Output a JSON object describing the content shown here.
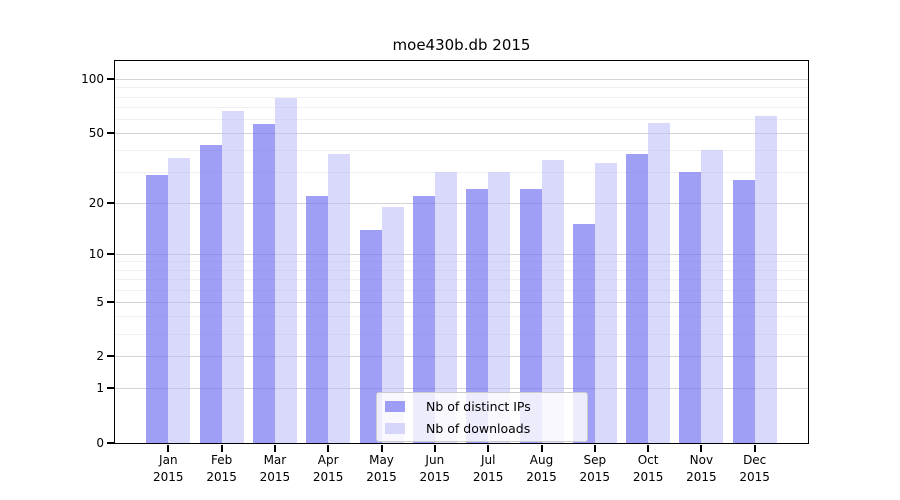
{
  "chart_data": {
    "type": "bar",
    "title": "moe430b.db 2015",
    "categories": [
      "Jan",
      "Feb",
      "Mar",
      "Apr",
      "May",
      "Jun",
      "Jul",
      "Aug",
      "Sep",
      "Oct",
      "Nov",
      "Dec"
    ],
    "category_year": "2015",
    "series": [
      {
        "name": "Nb of distinct IPs",
        "color": "rgba(108,108,240,0.65)",
        "color_hex_on_white": "#a3a3f3",
        "values": [
          29,
          43,
          56,
          22,
          14,
          22,
          24,
          24,
          15,
          38,
          30,
          27
        ]
      },
      {
        "name": "Nb of downloads",
        "color": "rgba(185,185,247,0.55)",
        "color_hex_on_white": "#d8d8fa",
        "values": [
          36,
          66,
          78,
          38,
          19,
          30,
          30,
          35,
          34,
          57,
          40,
          62
        ]
      }
    ],
    "xlabel": "",
    "ylabel": "",
    "yscale": "log10(1+y)",
    "ylim": [
      0,
      126
    ],
    "yticks": [
      100,
      50,
      20,
      10,
      5,
      2,
      1,
      0
    ],
    "minor_yticks": [
      90,
      80,
      70,
      60,
      40,
      30,
      9,
      8,
      7,
      6,
      4,
      3
    ],
    "grid": "horizontal major and minor gridlines",
    "legend_position": "lower center",
    "colors": {
      "axis": "#000000",
      "grid_major": "#d4d4d4",
      "grid_minor": "#f0f0f0",
      "legend_border": "#cccccc",
      "background": "#ffffff"
    }
  }
}
